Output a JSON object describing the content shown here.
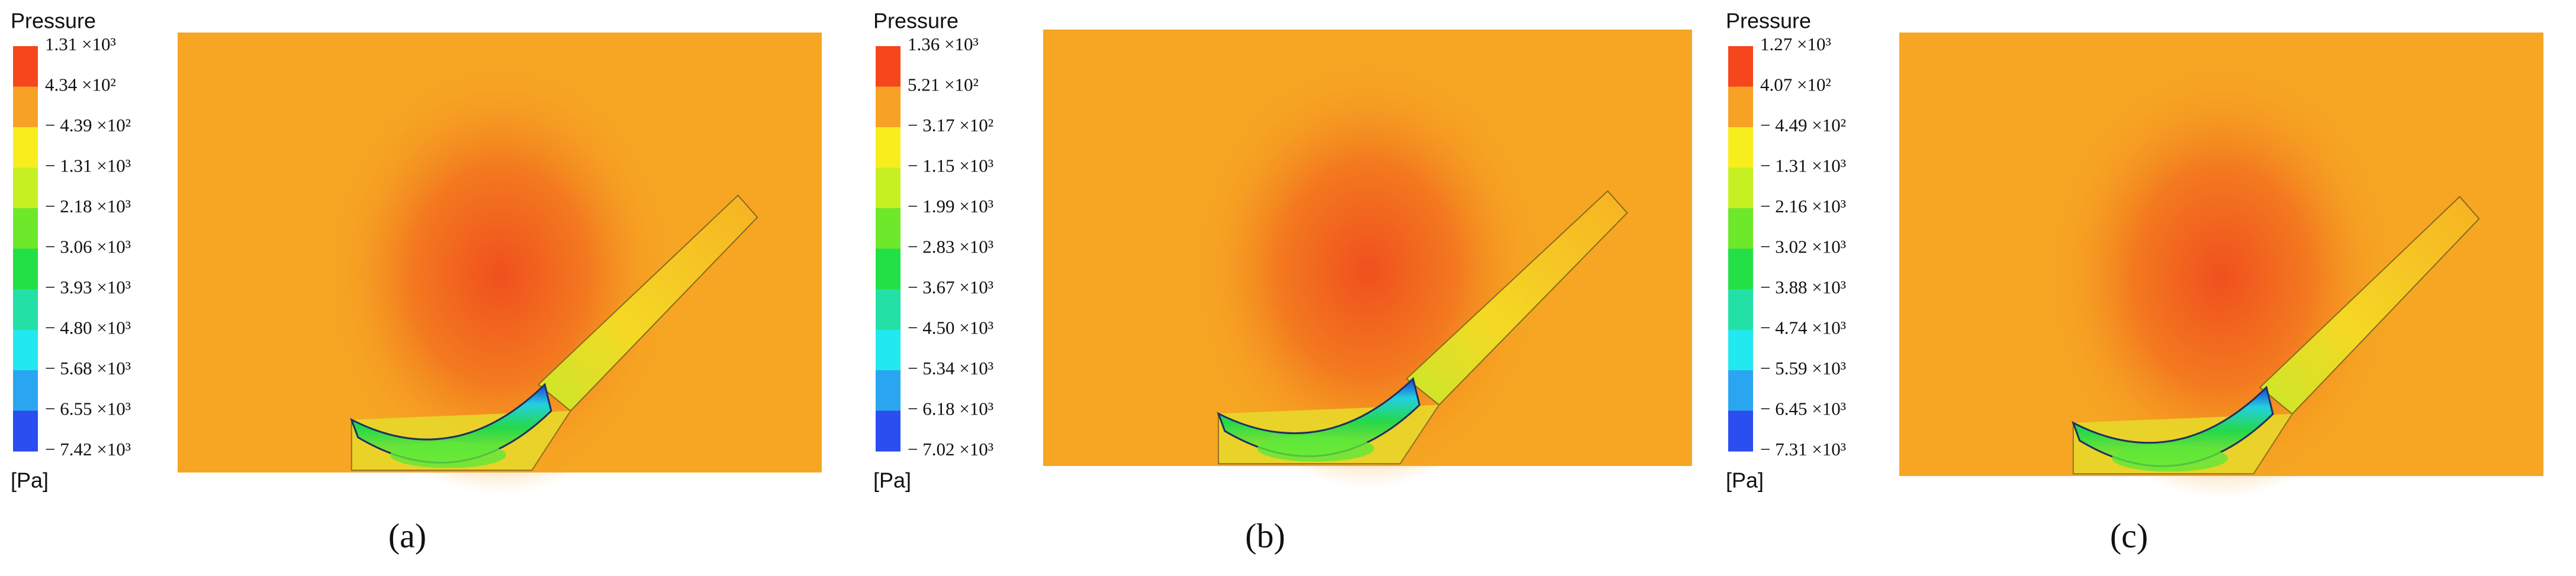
{
  "panels": [
    {
      "legend_title": "Pressure",
      "unit": "[Pa]",
      "caption": "(a)",
      "labels": [
        "1.31 ×10³",
        "4.34 ×10²",
        "− 4.39 ×10²",
        "− 1.31 ×10³",
        "− 2.18 ×10³",
        "− 3.06 ×10³",
        "− 3.93 ×10³",
        "− 4.80 ×10³",
        "− 5.68 ×10³",
        "− 6.55 ×10³",
        "− 7.42 ×10³"
      ]
    },
    {
      "legend_title": "Pressure",
      "unit": "[Pa]",
      "caption": "(b)",
      "labels": [
        "1.36 ×10³",
        "5.21 ×10²",
        "− 3.17 ×10²",
        "− 1.15 ×10³",
        "− 1.99 ×10³",
        "− 2.83 ×10³",
        "− 3.67 ×10³",
        "− 4.50 ×10³",
        "− 5.34 ×10³",
        "− 6.18 ×10³",
        "− 7.02 ×10³"
      ]
    },
    {
      "legend_title": "Pressure",
      "unit": "[Pa]",
      "caption": "(c)",
      "labels": [
        "1.27 ×10³",
        "4.07 ×10²",
        "− 4.49 ×10²",
        "− 1.31 ×10³",
        "− 2.16 ×10³",
        "− 3.02 ×10³",
        "− 3.88 ×10³",
        "− 4.74 ×10³",
        "− 5.59 ×10³",
        "− 6.45 ×10³",
        "− 7.31 ×10³"
      ]
    }
  ]
}
